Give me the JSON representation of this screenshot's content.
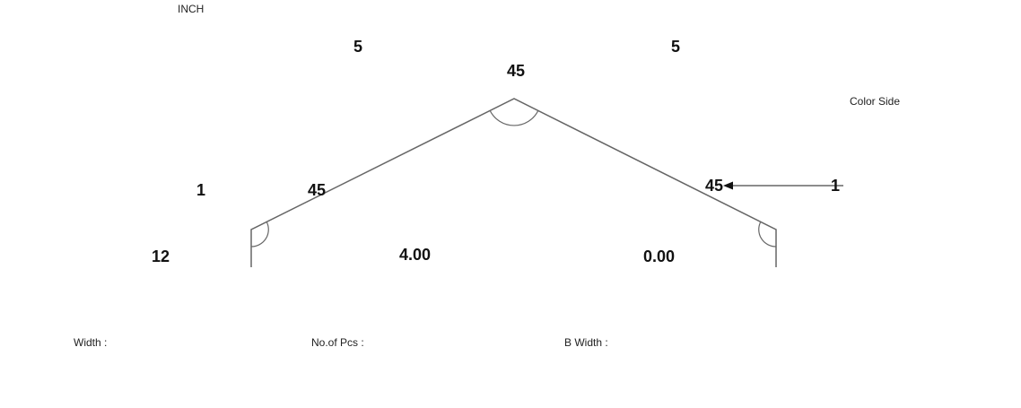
{
  "unit": "INCH",
  "color_side_label": "Color Side",
  "dimensions": {
    "segment_left_top": "5",
    "segment_right_top": "5",
    "apex_angle": "45",
    "left_angle": "45",
    "right_angle": "45",
    "left_hem": "1",
    "right_hem": "1",
    "left_bottom": "12",
    "center_bottom": "4.00",
    "right_bottom": "0.00"
  },
  "footer": {
    "width_label": "Width :",
    "pcs_label": "No.of Pcs :",
    "bwidth_label": "B Width :"
  },
  "colors": {
    "stroke": "#666666",
    "text": "#111111"
  }
}
